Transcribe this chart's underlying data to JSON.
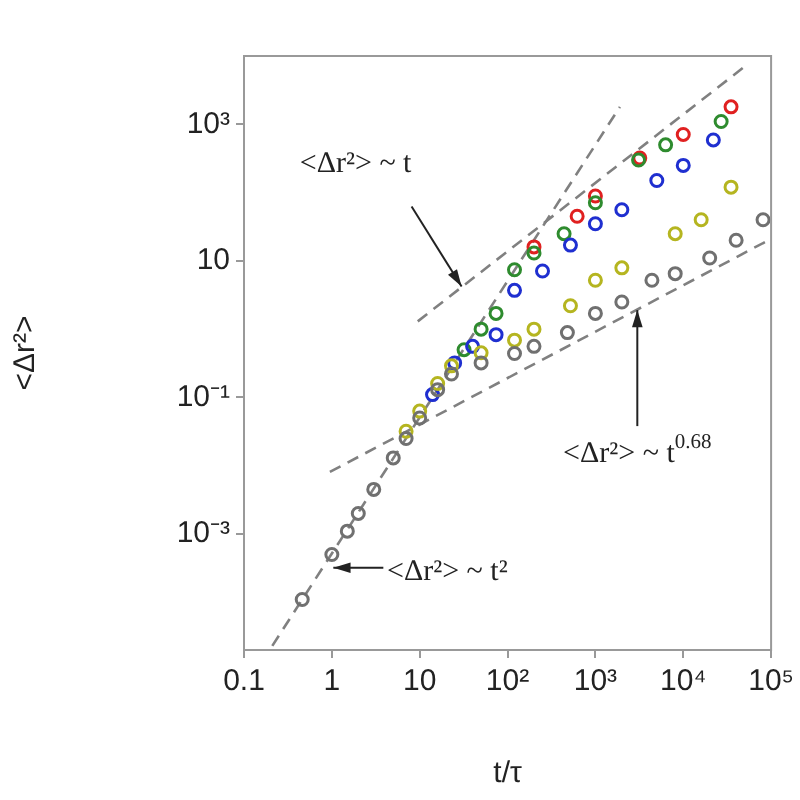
{
  "chart_data": {
    "type": "scatter",
    "xlabel": "t/τ",
    "ylabel": "<Δr²>",
    "log": "xy",
    "marker": "circle",
    "xlim": [
      0.1,
      100000
    ],
    "ylim": [
      2e-05,
      10000
    ],
    "xticks": [
      0.1,
      1,
      10,
      {
        "value": 100,
        "label": "10²"
      },
      {
        "value": 1000,
        "label": "10³"
      },
      {
        "value": 10000,
        "label": "10⁴"
      },
      {
        "value": 100000,
        "label": "10⁵"
      }
    ],
    "yticks": [
      {
        "value": 0.001,
        "label": "10⁻³"
      },
      {
        "value": 0.1,
        "label": "10⁻¹"
      },
      10,
      {
        "value": 1000,
        "label": "10³"
      }
    ],
    "series": [
      {
        "color": "#707070",
        "x": [
          0.46,
          1,
          1.5,
          2,
          3,
          5,
          7,
          10,
          16,
          23,
          50,
          120,
          200,
          480,
          1000,
          2000,
          4400,
          8100,
          20000,
          40000,
          81000
        ],
        "values": [
          0.00011,
          0.0005,
          0.0011,
          0.002,
          0.0045,
          0.013,
          0.025,
          0.05,
          0.13,
          0.22,
          0.32,
          0.44,
          0.56,
          0.89,
          1.7,
          2.5,
          5.2,
          6.5,
          11,
          20,
          40
        ]
      },
      {
        "color": "#b5b520",
        "x": [
          7,
          10,
          16,
          23,
          50,
          120,
          200,
          520,
          1000,
          2000,
          8100,
          16000,
          35000
        ],
        "values": [
          0.032,
          0.063,
          0.16,
          0.29,
          0.45,
          0.69,
          1.0,
          2.2,
          5.2,
          7.9,
          25,
          40,
          120
        ]
      },
      {
        "color": "#1f2fd0",
        "x": [
          14,
          25,
          40,
          74,
          120,
          250,
          520,
          1000,
          2000,
          5000,
          10000,
          22000
        ],
        "values": [
          0.11,
          0.32,
          0.56,
          0.83,
          3.7,
          7.1,
          17,
          35,
          56,
          150,
          250,
          590
        ]
      },
      {
        "color": "#2e8b2e",
        "x": [
          32,
          50,
          74,
          120,
          200,
          440,
          1000,
          3100,
          6300,
          27000
        ],
        "values": [
          0.5,
          1.0,
          1.7,
          7.4,
          13,
          25,
          71,
          300,
          500,
          1100
        ]
      },
      {
        "color": "#e02020",
        "x": [
          200,
          620,
          1000,
          3200,
          10000,
          35000
        ],
        "values": [
          16,
          45,
          89,
          320,
          710,
          1800
        ]
      },
      {
        "type": "line",
        "color": "#808080",
        "line_style": "dashed",
        "marker": "none",
        "x": [
          0.21,
          1900
        ],
        "values": [
          2.3e-05,
          1800
        ]
      },
      {
        "type": "line",
        "color": "#808080",
        "line_style": "dashed",
        "marker": "none",
        "x": [
          9.5,
          50000
        ],
        "values": [
          1.3,
          7000
        ]
      },
      {
        "type": "line",
        "color": "#808080",
        "line_style": "dashed",
        "marker": "none",
        "x": [
          0.95,
          100000
        ],
        "values": [
          0.0081,
          21
        ]
      }
    ],
    "annotations": [
      {
        "text": "<Δr²> ~ t",
        "x": 30,
        "y": 4.2
      },
      {
        "text": "<Δr²> ~ t$^{0.68}$",
        "x": 3000,
        "y": 1.9
      },
      {
        "text": "<Δr²> ~ t²",
        "x": 0.8,
        "y": 0.00032
      }
    ]
  }
}
